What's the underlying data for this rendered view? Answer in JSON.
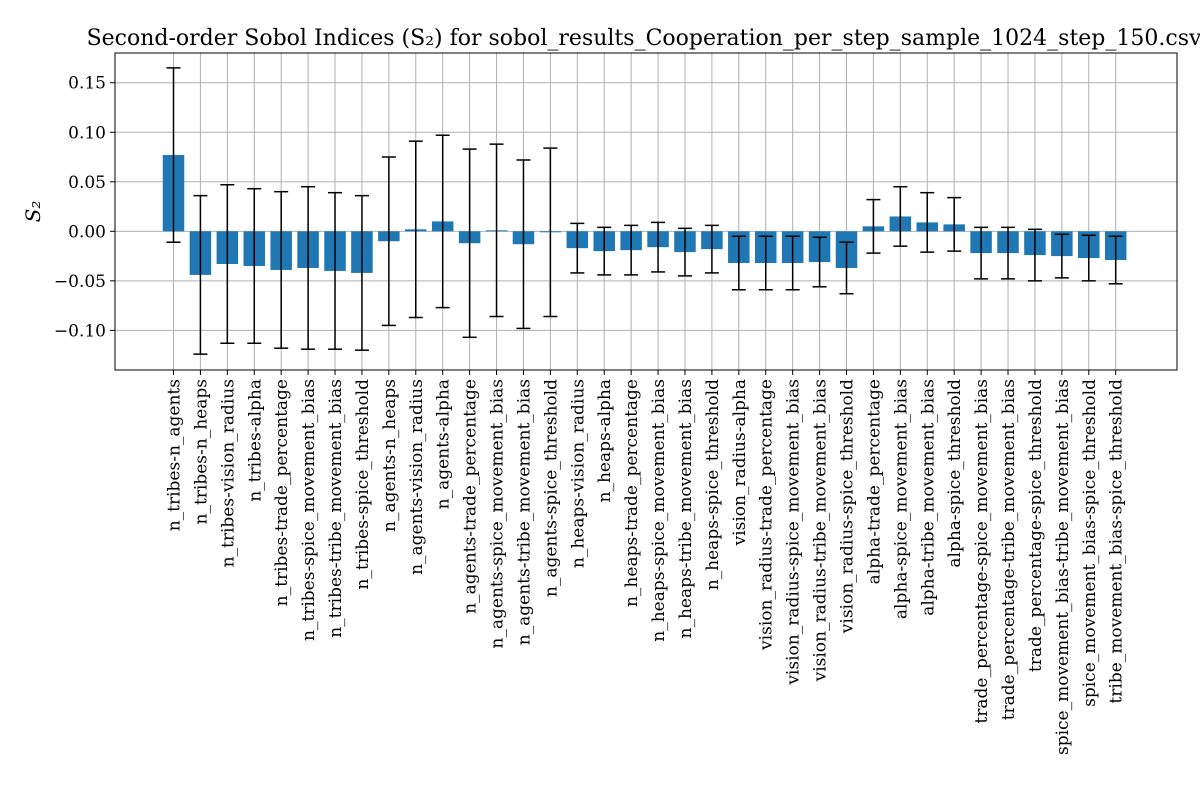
{
  "chart_data": {
    "type": "bar",
    "title": "Second-order Sobol Indices (S₂) for sobol_results_Cooperation_per_step_sample_1024_step_150.csv",
    "xlabel": "",
    "ylabel": "S₂",
    "ylim": [
      -0.14,
      0.18
    ],
    "yticks": [
      -0.1,
      -0.05,
      0.0,
      0.05,
      0.1,
      0.15
    ],
    "ytick_labels": [
      "−0.10",
      "−0.05",
      "0.00",
      "0.05",
      "0.10",
      "0.15"
    ],
    "grid": true,
    "bar_color": "#1f77b4",
    "error_color": "#000000",
    "categories": [
      "n_tribes-n_agents",
      "n_tribes-n_heaps",
      "n_tribes-vision_radius",
      "n_tribes-alpha",
      "n_tribes-trade_percentage",
      "n_tribes-spice_movement_bias",
      "n_tribes-tribe_movement_bias",
      "n_tribes-spice_threshold",
      "n_agents-n_heaps",
      "n_agents-vision_radius",
      "n_agents-alpha",
      "n_agents-trade_percentage",
      "n_agents-spice_movement_bias",
      "n_agents-tribe_movement_bias",
      "n_agents-spice_threshold",
      "n_heaps-vision_radius",
      "n_heaps-alpha",
      "n_heaps-trade_percentage",
      "n_heaps-spice_movement_bias",
      "n_heaps-tribe_movement_bias",
      "n_heaps-spice_threshold",
      "vision_radius-alpha",
      "vision_radius-trade_percentage",
      "vision_radius-spice_movement_bias",
      "vision_radius-tribe_movement_bias",
      "vision_radius-spice_threshold",
      "alpha-trade_percentage",
      "alpha-spice_movement_bias",
      "alpha-tribe_movement_bias",
      "alpha-spice_threshold",
      "trade_percentage-spice_movement_bias",
      "trade_percentage-tribe_movement_bias",
      "trade_percentage-spice_threshold",
      "spice_movement_bias-tribe_movement_bias",
      "spice_movement_bias-spice_threshold",
      "tribe_movement_bias-spice_threshold"
    ],
    "values": [
      0.077,
      -0.044,
      -0.033,
      -0.035,
      -0.039,
      -0.037,
      -0.04,
      -0.042,
      -0.01,
      0.002,
      0.01,
      -0.012,
      0.001,
      -0.013,
      -0.001,
      -0.017,
      -0.02,
      -0.019,
      -0.016,
      -0.021,
      -0.018,
      -0.032,
      -0.032,
      -0.032,
      -0.031,
      -0.037,
      0.005,
      0.015,
      0.009,
      0.007,
      -0.022,
      -0.022,
      -0.024,
      -0.025,
      -0.027,
      -0.029
    ],
    "errors": [
      0.088,
      0.08,
      0.08,
      0.078,
      0.079,
      0.082,
      0.079,
      0.078,
      0.085,
      0.089,
      0.087,
      0.095,
      0.087,
      0.085,
      0.085,
      0.025,
      0.024,
      0.025,
      0.025,
      0.024,
      0.024,
      0.027,
      0.027,
      0.027,
      0.025,
      0.026,
      0.027,
      0.03,
      0.03,
      0.027,
      0.026,
      0.026,
      0.026,
      0.022,
      0.023,
      0.024
    ]
  }
}
